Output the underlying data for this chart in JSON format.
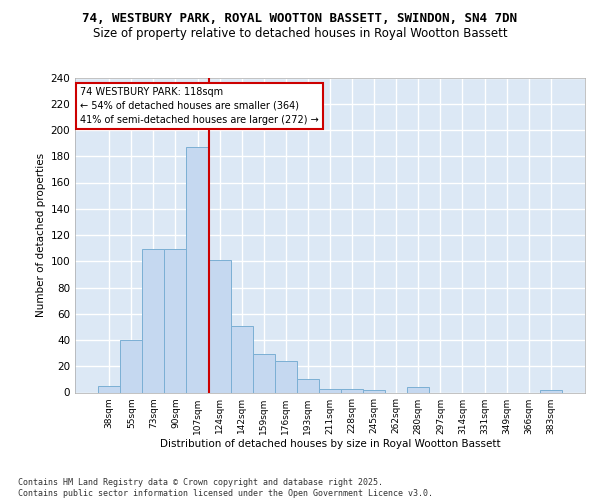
{
  "title1": "74, WESTBURY PARK, ROYAL WOOTTON BASSETT, SWINDON, SN4 7DN",
  "title2": "Size of property relative to detached houses in Royal Wootton Bassett",
  "xlabel": "Distribution of detached houses by size in Royal Wootton Bassett",
  "ylabel": "Number of detached properties",
  "categories": [
    "38sqm",
    "55sqm",
    "73sqm",
    "90sqm",
    "107sqm",
    "124sqm",
    "142sqm",
    "159sqm",
    "176sqm",
    "193sqm",
    "211sqm",
    "228sqm",
    "245sqm",
    "262sqm",
    "280sqm",
    "297sqm",
    "314sqm",
    "331sqm",
    "349sqm",
    "366sqm",
    "383sqm"
  ],
  "values": [
    5,
    40,
    109,
    109,
    187,
    101,
    51,
    29,
    24,
    10,
    3,
    3,
    2,
    0,
    4,
    0,
    0,
    0,
    0,
    0,
    2
  ],
  "bar_color": "#c5d8f0",
  "bar_edge_color": "#7bafd4",
  "bg_color": "#dce8f5",
  "grid_color": "#ffffff",
  "vline_x": 4.5,
  "vline_color": "#cc0000",
  "annotation_text": "74 WESTBURY PARK: 118sqm\n← 54% of detached houses are smaller (364)\n41% of semi-detached houses are larger (272) →",
  "annotation_box_color": "white",
  "annotation_box_edge": "#cc0000",
  "ylim": [
    0,
    240
  ],
  "yticks": [
    0,
    20,
    40,
    60,
    80,
    100,
    120,
    140,
    160,
    180,
    200,
    220,
    240
  ],
  "footer": "Contains HM Land Registry data © Crown copyright and database right 2025.\nContains public sector information licensed under the Open Government Licence v3.0.",
  "title_fontsize": 9,
  "title2_fontsize": 8.5
}
